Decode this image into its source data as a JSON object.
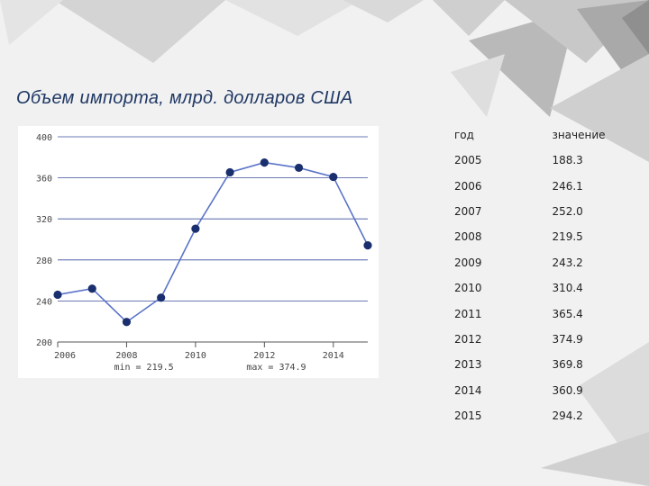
{
  "title": "Объем импорта, млрд. долларов США",
  "table": {
    "headers": [
      "год",
      "значение"
    ],
    "rows": [
      [
        "2005",
        "188.3"
      ],
      [
        "2006",
        "246.1"
      ],
      [
        "2007",
        "252.0"
      ],
      [
        "2008",
        "219.5"
      ],
      [
        "2009",
        "243.2"
      ],
      [
        "2010",
        "310.4"
      ],
      [
        "2011",
        "365.4"
      ],
      [
        "2012",
        "374.9"
      ],
      [
        "2013",
        "369.8"
      ],
      [
        "2014",
        "360.9"
      ],
      [
        "2015",
        "294.2"
      ]
    ]
  },
  "chart_data": {
    "type": "line",
    "title": "",
    "xlabel": "",
    "ylabel": "",
    "x": [
      2006,
      2007,
      2008,
      2009,
      2010,
      2011,
      2012,
      2013,
      2014,
      2015
    ],
    "values": [
      246.1,
      252.0,
      219.5,
      243.2,
      310.4,
      365.4,
      374.9,
      369.8,
      360.9,
      294.2
    ],
    "xlim": [
      2006,
      2015
    ],
    "ylim": [
      200,
      400
    ],
    "x_ticks": [
      2006,
      2008,
      2010,
      2012,
      2014
    ],
    "y_ticks": [
      200,
      240,
      280,
      320,
      360,
      400
    ],
    "grid": true,
    "min_label": "min = 219.5",
    "max_label": "max = 374.9",
    "line_color": "#5a73c8",
    "marker_color": "#1a2f6e"
  }
}
